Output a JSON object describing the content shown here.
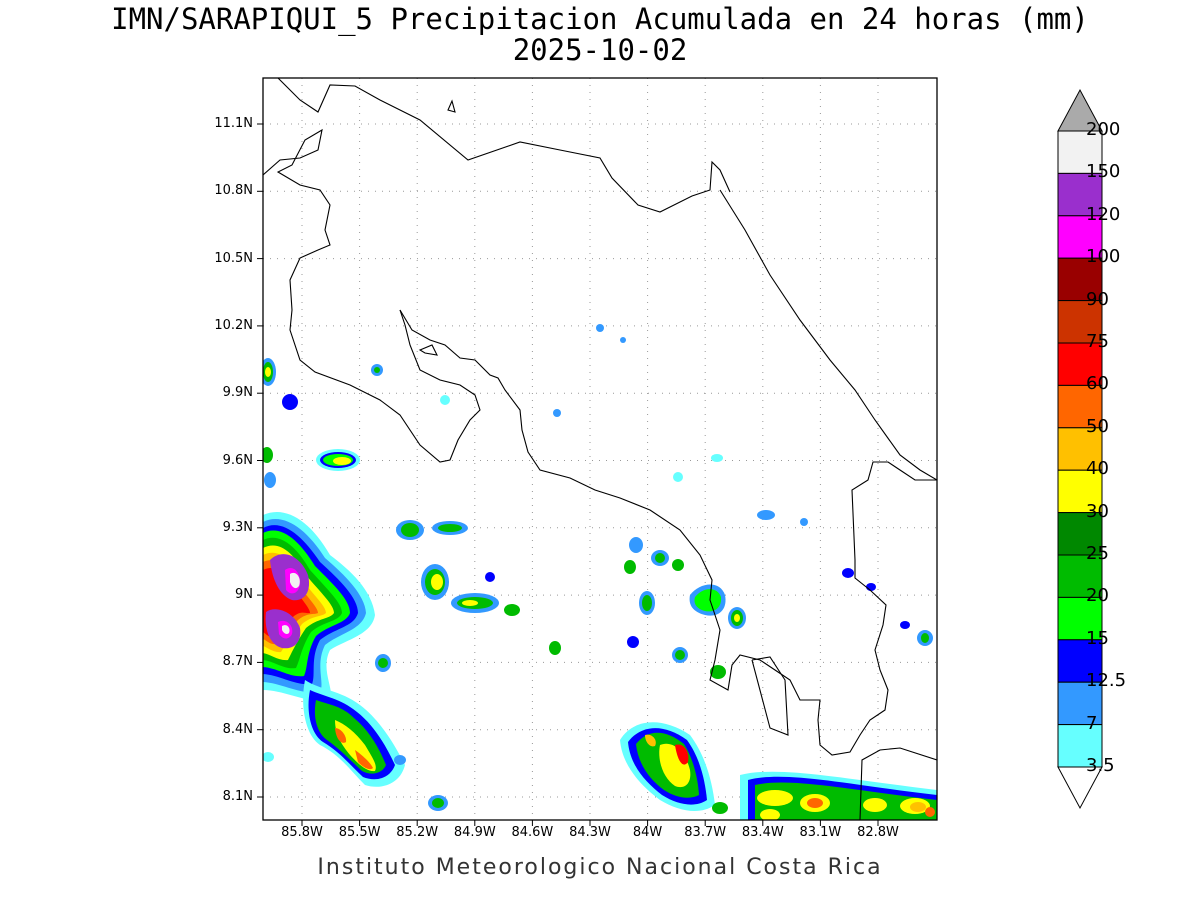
{
  "title_line1": "IMN/SARAPIQUI_5 Precipitacion Acumulada en 24 horas (mm)",
  "title_line2": "2025-10-02",
  "footer": "Instituto Meteorologico Nacional Costa Rica",
  "lat_labels": [
    "11.1N",
    "10.8N",
    "10.5N",
    "10.2N",
    "9.9N",
    "9.6N",
    "9.3N",
    "9N",
    "8.7N",
    "8.4N",
    "8.1N"
  ],
  "lon_labels": [
    "85.8W",
    "85.5W",
    "85.2W",
    "84.9W",
    "84.6W",
    "84.3W",
    "84W",
    "83.7W",
    "83.4W",
    "83.1W",
    "82.8W"
  ],
  "colorbar": {
    "labels": [
      "200",
      "150",
      "120",
      "100",
      "90",
      "75",
      "60",
      "50",
      "40",
      "30",
      "25",
      "20",
      "15",
      "12.5",
      "7",
      "3.5"
    ],
    "colors": [
      "#f2f2f2",
      "#9a2fcd",
      "#ff00ff",
      "#990000",
      "#cc3300",
      "#ff0000",
      "#ff6600",
      "#ffc000",
      "#ffff00",
      "#008800",
      "#00bb00",
      "#00ff00",
      "#0000ff",
      "#3399ff",
      "#66ffff"
    ],
    "top_arrow_color": "#aaaaaa",
    "bottom_arrow_color": "#ffffff"
  }
}
